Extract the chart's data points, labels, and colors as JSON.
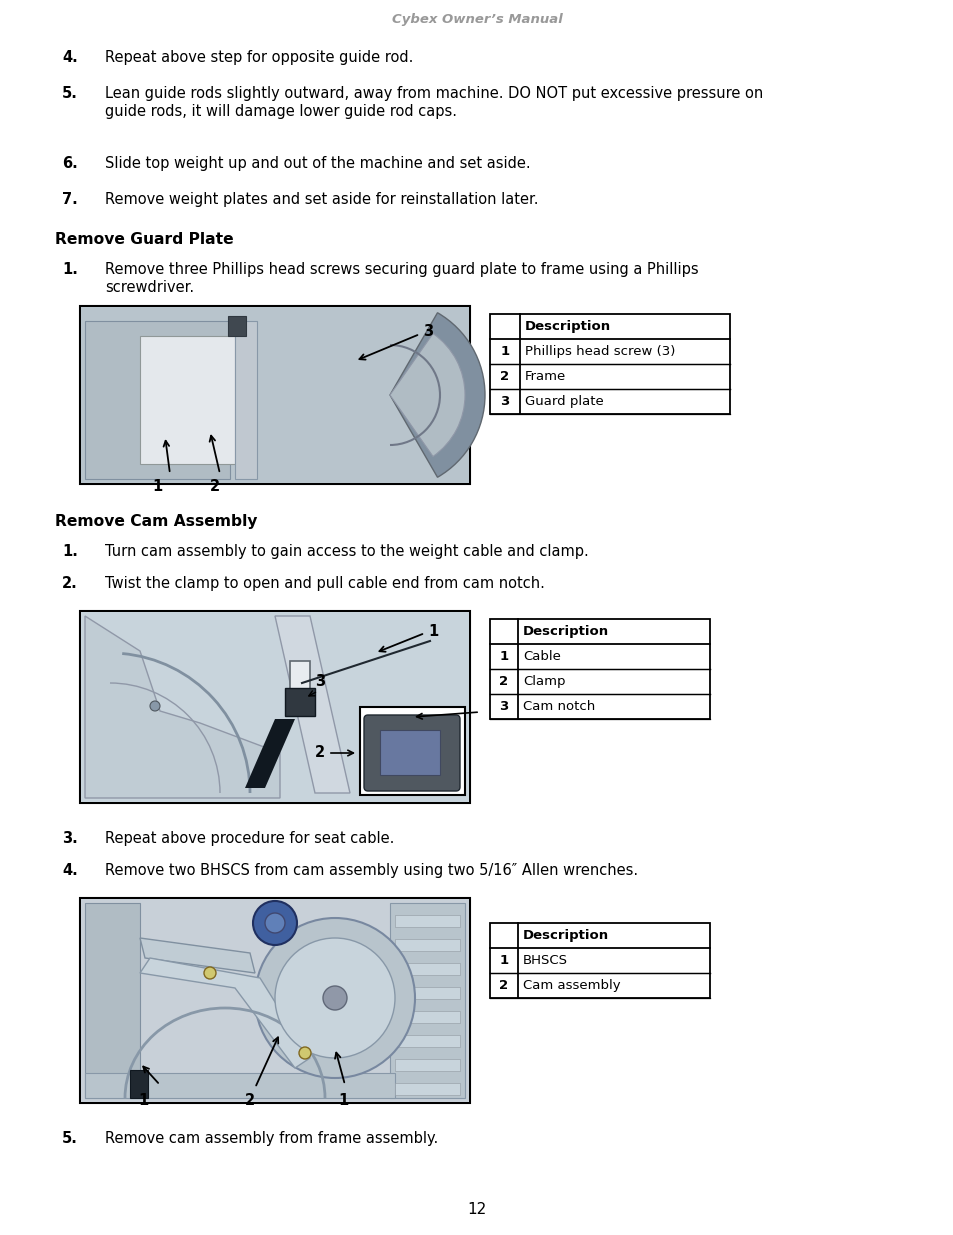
{
  "page_title": "Cybex Owner’s Manual",
  "page_number": "12",
  "bg": "#ffffff",
  "header_color": "#999999",
  "fs": 10.5,
  "fs_section": 11.2,
  "fs_label": 10.5,
  "table1_header": "Description",
  "table1_rows": [
    [
      "1",
      "Phillips head screw (3)"
    ],
    [
      "2",
      "Frame"
    ],
    [
      "3",
      "Guard plate"
    ]
  ],
  "table2_header": "Description",
  "table2_rows": [
    [
      "1",
      "Cable"
    ],
    [
      "2",
      "Clamp"
    ],
    [
      "3",
      "Cam notch"
    ]
  ],
  "table3_header": "Description",
  "table3_rows": [
    [
      "1",
      "BHSCS"
    ],
    [
      "2",
      "Cam assembly"
    ]
  ]
}
